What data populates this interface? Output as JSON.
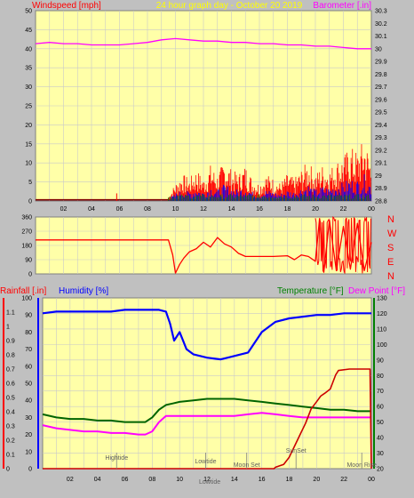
{
  "header": {
    "left_label": "Windspeed [mph]",
    "center_label": "24 hour graph day - October 20 2019",
    "right_label": "Barometer [.in]"
  },
  "colors": {
    "plot_bg": "#ffffa8",
    "frame_bg": "#c0c0c0",
    "grid": "#c9c9c9",
    "wind": "#ff0000",
    "wind_blue": "#0000ff",
    "wind_green": "#008000",
    "barometer": "#ff00ff",
    "direction": "#ff0000",
    "humidity": "#0000ff",
    "temperature": "#006400",
    "dewpoint": "#ff00ff",
    "rainfall": "#cc0000",
    "label_red": "#ff0000",
    "label_blue": "#0000ff",
    "label_green": "#008000",
    "label_yellow": "#ffff00",
    "label_magenta": "#ff00ff"
  },
  "bottom_header": {
    "rain_label": "Rainfall [.in]",
    "humidity_label": "Humidity [%]",
    "temp_label": "Temperature [°F]",
    "dew_label": "Dew Point [°F]"
  },
  "direction_letters": [
    "N",
    "W",
    "S",
    "E",
    "N"
  ],
  "annotations": [
    {
      "text": "Hightide",
      "x": 5.4
    },
    {
      "text": "Lowtide",
      "x": 11.9
    },
    {
      "text": "Moon Set",
      "x": 14.9
    },
    {
      "text": "SunSet",
      "x": 18.5
    },
    {
      "text": "Moon Rise",
      "x": 23.3
    },
    {
      "text": "Lowtide",
      "x": 12.2
    }
  ],
  "chart_data": [
    {
      "type": "line",
      "title": "24 hour graph day - October 20 2019",
      "x_ticks": [
        "02",
        "04",
        "06",
        "08",
        "10",
        "12",
        "14",
        "16",
        "18",
        "20",
        "22",
        "00"
      ],
      "xlim": [
        0,
        24
      ],
      "grid": true,
      "y_left": {
        "label": "Windspeed [mph]",
        "lim": [
          0,
          50
        ],
        "ticks": [
          0,
          5,
          10,
          15,
          20,
          25,
          30,
          35,
          40,
          45,
          50
        ]
      },
      "y_right": {
        "label": "Barometer [.in]",
        "lim": [
          28.8,
          30.3
        ],
        "ticks": [
          "28.8",
          "28.9",
          "29",
          "29.1",
          "29.2",
          "29.3",
          "29.4",
          "29.5",
          "29.6",
          "29.7",
          "29.8",
          "29.9",
          "30",
          "30.1",
          "30.2",
          "30.3"
        ]
      },
      "series": [
        {
          "name": "Barometer",
          "axis": "right",
          "x": [
            0,
            1,
            2,
            3,
            4,
            5,
            6,
            7,
            8,
            9,
            10,
            11,
            12,
            13,
            14,
            15,
            16,
            17,
            18,
            19,
            20,
            21,
            22,
            23,
            24
          ],
          "y": [
            30.04,
            30.05,
            30.04,
            30.04,
            30.03,
            30.03,
            30.03,
            30.04,
            30.05,
            30.07,
            30.08,
            30.07,
            30.06,
            30.06,
            30.05,
            30.05,
            30.04,
            30.04,
            30.03,
            30.03,
            30.02,
            30.02,
            30.01,
            30.0,
            30.0
          ]
        },
        {
          "name": "Windspeed",
          "axis": "left",
          "x": [
            0,
            5.7,
            5.8,
            9.5,
            10,
            10.5,
            11,
            11.5,
            12,
            12.5,
            13,
            13.5,
            14,
            14.5,
            15,
            15.5,
            16,
            16.5,
            17,
            17.5,
            18,
            18.5,
            19,
            19.5,
            20,
            20.5,
            21,
            21.5,
            22,
            22.5,
            23,
            23.5,
            24
          ],
          "y": [
            0,
            0,
            2,
            1,
            4,
            6,
            5,
            7,
            5,
            8,
            6,
            9,
            7,
            6,
            8,
            5,
            4,
            6,
            5,
            4,
            6,
            5,
            7,
            9,
            6,
            8,
            7,
            9,
            10,
            12,
            11,
            14,
            9
          ]
        }
      ]
    },
    {
      "type": "line",
      "title": "",
      "xlim": [
        0,
        24
      ],
      "grid": true,
      "y_left": {
        "lim": [
          0,
          360
        ],
        "ticks": [
          0,
          90,
          180,
          270,
          360
        ]
      },
      "y_right": {
        "labels": [
          "N",
          "W",
          "S",
          "E",
          "N"
        ]
      },
      "series": [
        {
          "name": "Wind Direction",
          "x": [
            0,
            9.5,
            9.8,
            10.0,
            10.3,
            10.6,
            11,
            11.5,
            12,
            12.5,
            13,
            13.5,
            14,
            14.5,
            15,
            16,
            17,
            18,
            18.5,
            19,
            19.5,
            20,
            20.3,
            20.6,
            21,
            21.5,
            22,
            22.5,
            23,
            23.5,
            24
          ],
          "y": [
            215,
            215,
            120,
            5,
            60,
            100,
            140,
            160,
            200,
            170,
            230,
            190,
            170,
            130,
            110,
            110,
            110,
            115,
            90,
            120,
            110,
            80,
            350,
            10,
            340,
            20,
            300,
            30,
            320,
            20,
            200
          ]
        }
      ]
    },
    {
      "type": "line",
      "title": "",
      "xlim": [
        0,
        24
      ],
      "grid": true,
      "y_left_outer": {
        "label": "Rainfall [.in]",
        "lim": [
          0,
          1.2
        ],
        "ticks": [
          0,
          0.1,
          0.2,
          0.3,
          0.4,
          0.5,
          0.6,
          0.7,
          0.8,
          0.9,
          1,
          1.1
        ]
      },
      "y_left_inner": {
        "label": "Humidity [%]",
        "lim": [
          0,
          100
        ],
        "ticks": [
          0,
          10,
          20,
          30,
          40,
          50,
          60,
          70,
          80,
          90,
          100
        ]
      },
      "y_right": {
        "label": "Temperature [°F] Dew Point [°F]",
        "lim": [
          20,
          130
        ],
        "ticks": [
          20,
          30,
          40,
          50,
          60,
          70,
          80,
          90,
          100,
          110,
          120,
          130
        ]
      },
      "series": [
        {
          "name": "Humidity",
          "axis": "inner",
          "x": [
            0,
            1,
            2,
            3,
            4,
            5,
            6,
            7,
            8,
            8.5,
            9,
            9.3,
            9.6,
            10,
            10.5,
            11,
            12,
            13,
            14,
            15,
            15.5,
            16,
            17,
            18,
            19,
            20,
            21,
            22,
            23,
            24
          ],
          "y": [
            91,
            92,
            92,
            92,
            92,
            92,
            93,
            93,
            93,
            93,
            92,
            85,
            75,
            80,
            70,
            67,
            65,
            64,
            66,
            68,
            74,
            80,
            86,
            88,
            89,
            90,
            90,
            91,
            91,
            91
          ]
        },
        {
          "name": "Temperature",
          "axis": "right",
          "x": [
            0,
            1,
            2,
            3,
            4,
            5,
            6,
            7,
            7.5,
            8,
            8.5,
            9,
            9.5,
            10,
            11,
            12,
            13,
            14,
            15,
            16,
            17,
            18,
            19,
            20,
            21,
            22,
            23,
            24
          ],
          "y": [
            55,
            53,
            52,
            52,
            51,
            51,
            50,
            50,
            50,
            53,
            58,
            61,
            62,
            63,
            64,
            65,
            65,
            65,
            64,
            63,
            62,
            61,
            60,
            59,
            58,
            58,
            57,
            57
          ]
        },
        {
          "name": "Dew Point",
          "axis": "right",
          "x": [
            0,
            1,
            2,
            3,
            4,
            5,
            6,
            7,
            7.5,
            8,
            8.5,
            9,
            9.5,
            10,
            11,
            12,
            13,
            14,
            15,
            16,
            17,
            18,
            19,
            20,
            21,
            22,
            23,
            24
          ],
          "y": [
            48,
            46,
            45,
            44,
            44,
            43,
            43,
            42,
            42,
            44,
            50,
            54,
            54,
            54,
            54,
            54,
            54,
            54,
            55,
            56,
            55,
            54,
            53,
            53,
            53,
            53,
            53,
            53
          ]
        },
        {
          "name": "Rainfall",
          "axis": "outer",
          "x": [
            0,
            16.9,
            17.0,
            17.6,
            18.0,
            18.4,
            18.8,
            19.2,
            19.6,
            20.0,
            20.3,
            20.6,
            21,
            21.4,
            21.6,
            22.4,
            23.2,
            23.8,
            23.9,
            24
          ],
          "y": [
            0,
            0,
            0.01,
            0.03,
            0.08,
            0.16,
            0.24,
            0.32,
            0.42,
            0.47,
            0.51,
            0.53,
            0.56,
            0.66,
            0.69,
            0.7,
            0.7,
            0.7,
            0.7,
            0.0
          ]
        }
      ]
    }
  ]
}
